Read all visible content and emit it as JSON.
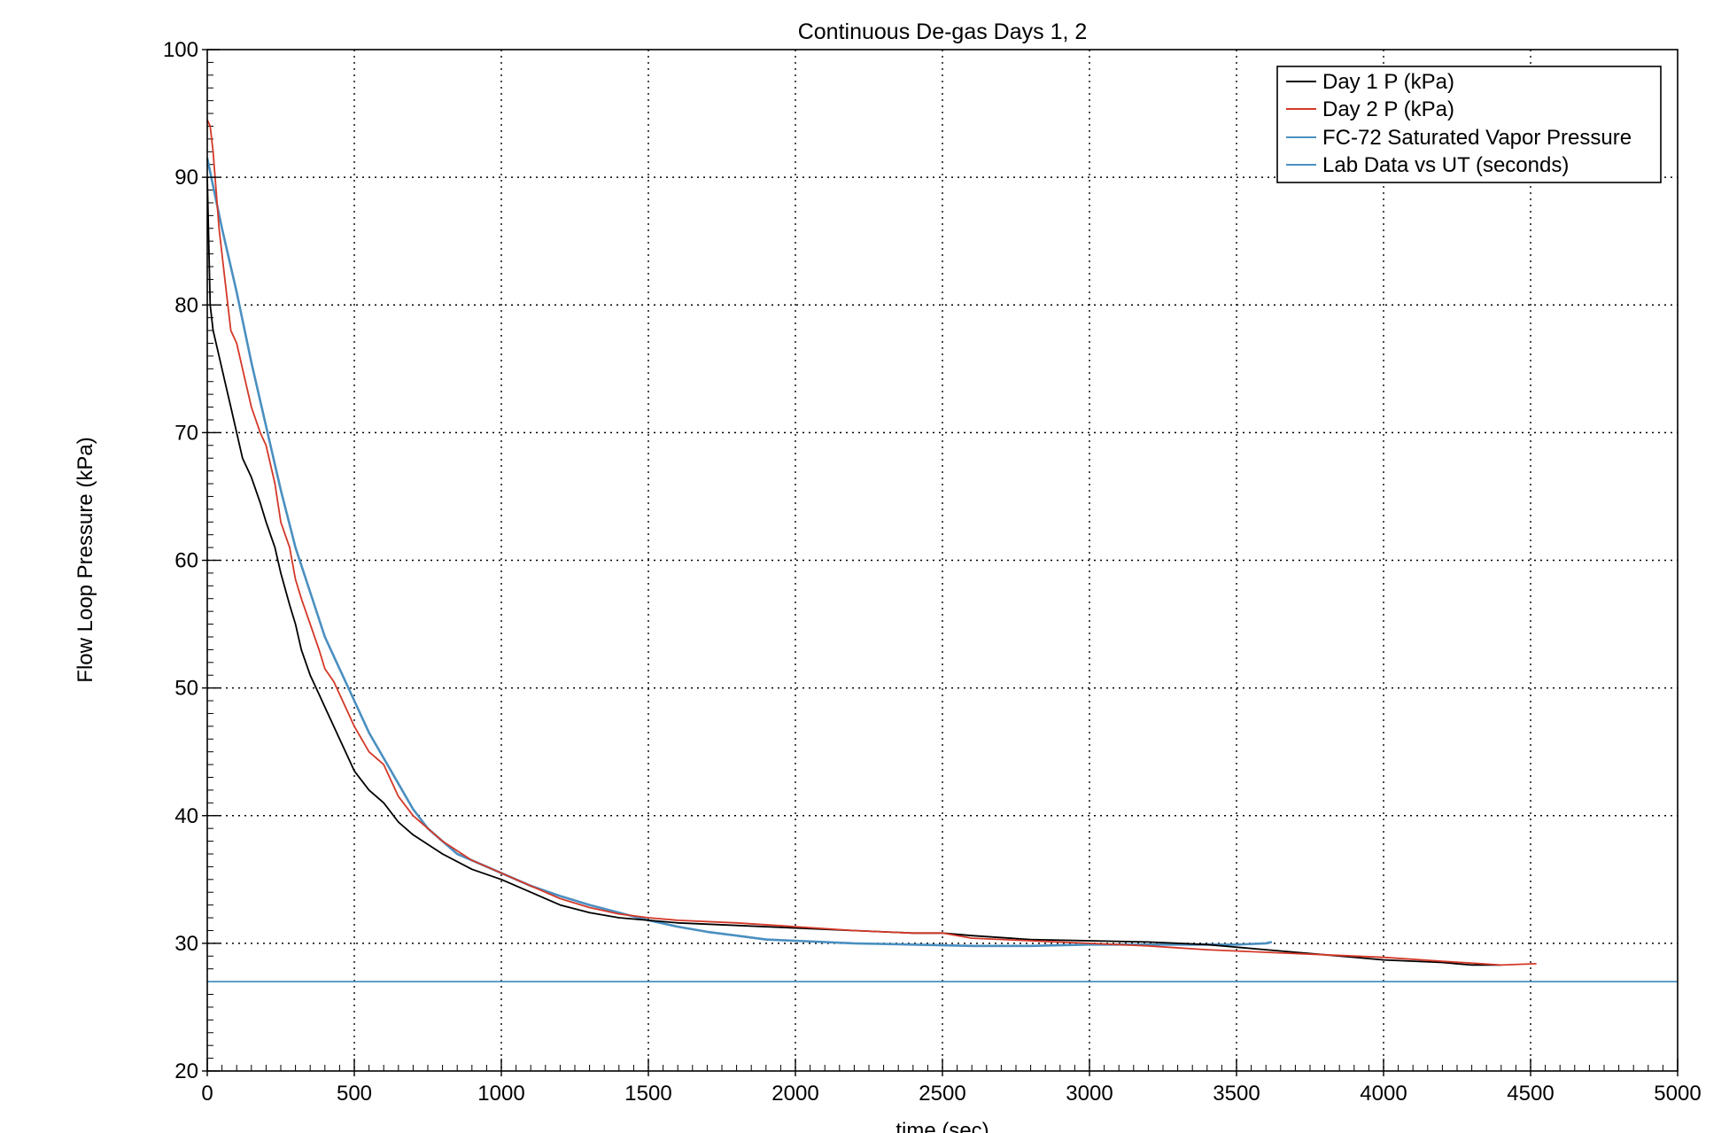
{
  "chart_data": {
    "type": "line",
    "title": "Continuous De-gas Days 1, 2",
    "xlabel": "time (sec)",
    "ylabel": "Flow Loop Pressure (kPa)",
    "xlim": [
      0,
      5000
    ],
    "ylim": [
      20,
      100
    ],
    "x_major_ticks": [
      0,
      500,
      1000,
      1500,
      2000,
      2500,
      3000,
      3500,
      4000,
      4500,
      5000
    ],
    "x_tick_labels": [
      "0",
      "500",
      "1000",
      "1500",
      "2000",
      "2500",
      "3000",
      "3500",
      "4000",
      "4500",
      "5000"
    ],
    "x_minor_step": 50,
    "y_major_ticks": [
      20,
      30,
      40,
      50,
      60,
      70,
      80,
      90,
      100
    ],
    "y_tick_labels": [
      "20",
      "30",
      "40",
      "50",
      "60",
      "70",
      "80",
      "90",
      "100"
    ],
    "y_minor_step": 1,
    "grid": true,
    "grid_style": "dotted",
    "legend_position": "top-right",
    "series": [
      {
        "name": "Day 1 P (kPa)",
        "color": "#000000",
        "x": [
          0,
          10,
          20,
          40,
          60,
          80,
          100,
          120,
          150,
          180,
          200,
          230,
          250,
          280,
          300,
          320,
          350,
          380,
          400,
          430,
          450,
          480,
          500,
          550,
          600,
          650,
          700,
          800,
          900,
          1000,
          1100,
          1200,
          1300,
          1400,
          1500,
          1600,
          1800,
          2000,
          2200,
          2400,
          2500,
          2600,
          2800,
          3000,
          3200,
          3400,
          3600,
          3800,
          4000,
          4200,
          4300,
          4400
        ],
        "y": [
          90,
          80,
          78,
          76,
          74,
          72,
          70,
          68,
          66.5,
          64.5,
          63,
          61,
          59,
          56.5,
          55,
          53,
          51,
          49.5,
          48.5,
          47,
          46,
          44.5,
          43.5,
          42,
          41,
          39.5,
          38.5,
          37,
          35.8,
          35,
          34,
          33,
          32.4,
          32,
          31.8,
          31.6,
          31.4,
          31.2,
          31,
          30.8,
          30.8,
          30.6,
          30.3,
          30.2,
          30.1,
          29.9,
          29.5,
          29.1,
          28.7,
          28.5,
          28.3,
          28.3
        ]
      },
      {
        "name": "Day 2 P (kPa)",
        "color": "#d43828",
        "x": [
          0,
          10,
          20,
          40,
          60,
          80,
          100,
          120,
          150,
          180,
          200,
          230,
          250,
          280,
          300,
          320,
          350,
          380,
          400,
          430,
          450,
          480,
          500,
          550,
          600,
          650,
          700,
          800,
          900,
          1000,
          1100,
          1200,
          1300,
          1400,
          1500,
          1600,
          1800,
          2000,
          2200,
          2400,
          2500,
          2600,
          2800,
          3000,
          3200,
          3400,
          3600,
          3800,
          4000,
          4200,
          4400,
          4520
        ],
        "y": [
          94.5,
          94,
          92,
          86,
          82,
          78,
          77,
          75,
          72,
          70,
          69,
          66,
          63,
          61,
          58.5,
          57,
          55,
          53,
          51.5,
          50.5,
          49.5,
          48,
          47,
          45,
          44,
          41.5,
          40,
          38,
          36.5,
          35.5,
          34.5,
          33.5,
          32.8,
          32.3,
          32,
          31.8,
          31.6,
          31.3,
          31,
          30.8,
          30.8,
          30.4,
          30.2,
          30,
          29.8,
          29.5,
          29.3,
          29.1,
          28.9,
          28.6,
          28.3,
          28.4
        ]
      },
      {
        "name": "FC-72 Saturated Vapor Pressure",
        "color": "#4a8fc0",
        "x": [
          0,
          5000
        ],
        "y": [
          27,
          27
        ]
      },
      {
        "name": "Lab Data vs UT (seconds)",
        "color": "#4a8fc0",
        "x": [
          0,
          50,
          100,
          150,
          200,
          250,
          300,
          350,
          400,
          450,
          500,
          550,
          600,
          650,
          700,
          750,
          800,
          850,
          900,
          1000,
          1100,
          1200,
          1300,
          1400,
          1500,
          1600,
          1700,
          1800,
          1900,
          2000,
          2200,
          2400,
          2600,
          2800,
          3000,
          3200,
          3400,
          3500,
          3600,
          3620
        ],
        "y": [
          91.5,
          86,
          81,
          75.5,
          70.5,
          65.5,
          61,
          57.5,
          54,
          51.5,
          49,
          46.5,
          44.5,
          42.5,
          40.5,
          39,
          38,
          37,
          36.5,
          35.5,
          34.5,
          33.7,
          33,
          32.4,
          31.8,
          31.3,
          30.9,
          30.6,
          30.3,
          30.2,
          30,
          29.9,
          29.8,
          29.8,
          29.9,
          29.9,
          29.9,
          29.9,
          30,
          30.1
        ]
      }
    ]
  }
}
